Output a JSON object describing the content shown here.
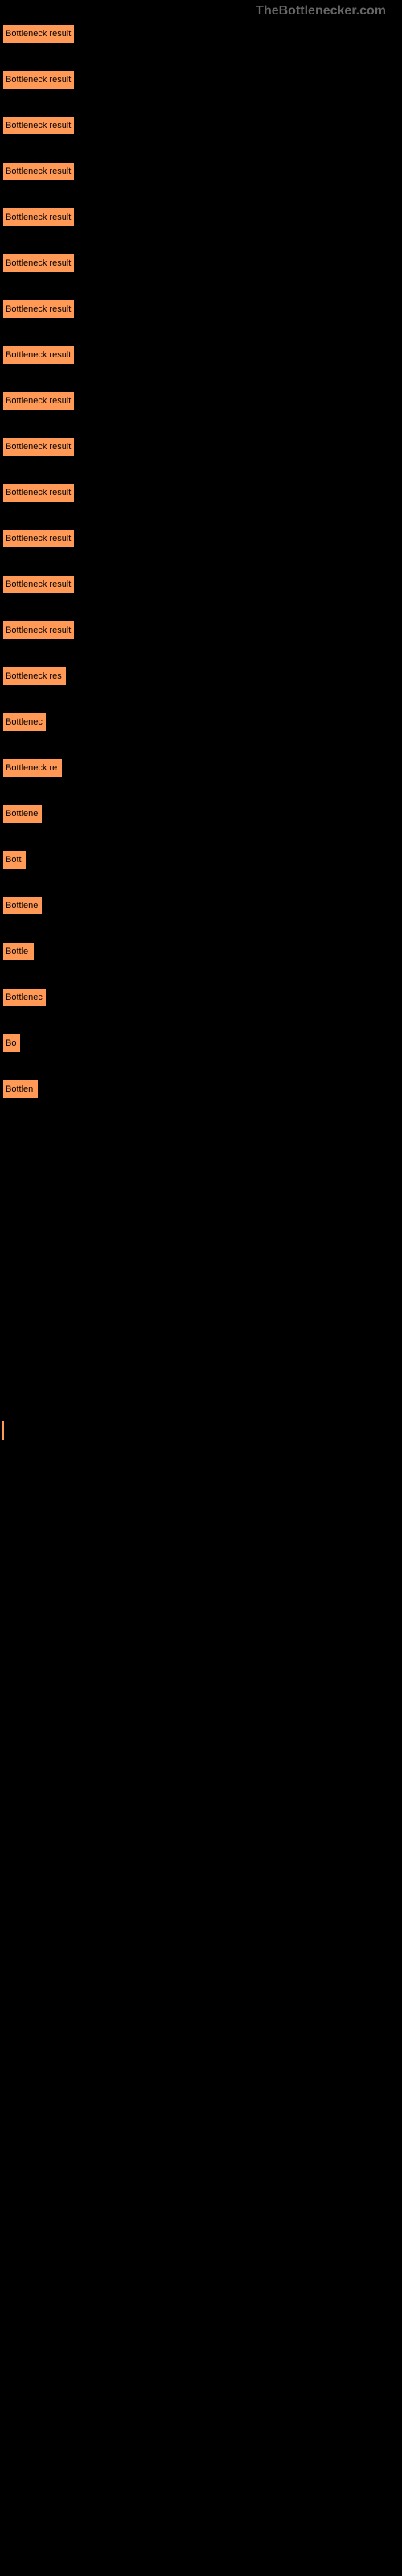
{
  "watermark": "TheBottlenecker.com",
  "chart": {
    "type": "bar",
    "bar_color": "#ff9955",
    "background_color": "#000000",
    "label_color": "#000000",
    "label_fontsize": 11,
    "bars": [
      {
        "width": 90,
        "label": "Bottleneck result"
      },
      {
        "width": 90,
        "label": "Bottleneck result"
      },
      {
        "width": 90,
        "label": "Bottleneck result"
      },
      {
        "width": 90,
        "label": "Bottleneck result"
      },
      {
        "width": 90,
        "label": "Bottleneck result"
      },
      {
        "width": 90,
        "label": "Bottleneck result"
      },
      {
        "width": 90,
        "label": "Bottleneck result"
      },
      {
        "width": 90,
        "label": "Bottleneck result"
      },
      {
        "width": 90,
        "label": "Bottleneck result"
      },
      {
        "width": 90,
        "label": "Bottleneck result"
      },
      {
        "width": 90,
        "label": "Bottleneck result"
      },
      {
        "width": 90,
        "label": "Bottleneck result"
      },
      {
        "width": 90,
        "label": "Bottleneck result"
      },
      {
        "width": 90,
        "label": "Bottleneck result"
      },
      {
        "width": 80,
        "label": "Bottleneck res"
      },
      {
        "width": 55,
        "label": "Bottlenec"
      },
      {
        "width": 75,
        "label": "Bottleneck re"
      },
      {
        "width": 50,
        "label": "Bottlene"
      },
      {
        "width": 30,
        "label": "Bott"
      },
      {
        "width": 50,
        "label": "Bottlene"
      },
      {
        "width": 40,
        "label": "Bottle"
      },
      {
        "width": 55,
        "label": "Bottlenec"
      },
      {
        "width": 23,
        "label": "Bo"
      },
      {
        "width": 45,
        "label": "Bottlen"
      }
    ]
  }
}
